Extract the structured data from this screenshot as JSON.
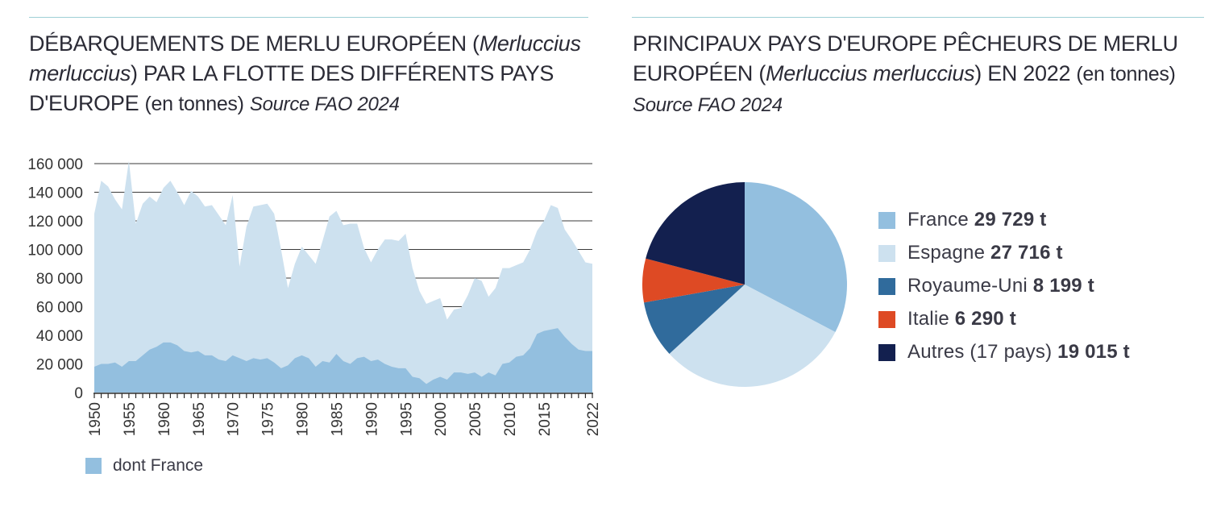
{
  "left_chart": {
    "title_main": "DÉBARQUEMENTS DE MERLU EUROPÉEN (",
    "title_species": "Merluccius merluccius",
    "title_cont": ") PAR LA FLOTTE DES DIFFÉRENTS PAYS D'EUROPE ",
    "title_unit": "(en tonnes)",
    "title_source": "Source FAO 2024",
    "legend_label": "dont France"
  },
  "right_chart": {
    "title_main": "PRINCIPAUX PAYS D'EUROPE PÊCHEURS DE MERLU EUROPÉEN (",
    "title_species": "Merluccius merluccius",
    "title_cont": ") EN 2022 ",
    "title_unit": "(en tonnes)",
    "title_source": "Source FAO 2024"
  },
  "chart_data": [
    {
      "type": "area",
      "xlabel": "",
      "ylabel": "",
      "ylim": [
        0,
        160000
      ],
      "y_ticks": [
        "0",
        "20 000",
        "40 000",
        "60 000",
        "80 000",
        "100 000",
        "120 000",
        "140 000",
        "160 000"
      ],
      "x_tick_labels": [
        "1950",
        "1955",
        "1960",
        "1965",
        "1970",
        "1975",
        "1980",
        "1985",
        "1990",
        "1995",
        "2000",
        "2005",
        "2010",
        "2015",
        "2022"
      ],
      "x": [
        1950,
        1951,
        1952,
        1953,
        1954,
        1955,
        1956,
        1957,
        1958,
        1959,
        1960,
        1961,
        1962,
        1963,
        1964,
        1965,
        1966,
        1967,
        1968,
        1969,
        1970,
        1971,
        1972,
        1973,
        1974,
        1975,
        1976,
        1977,
        1978,
        1979,
        1980,
        1981,
        1982,
        1983,
        1984,
        1985,
        1986,
        1987,
        1988,
        1989,
        1990,
        1991,
        1992,
        1993,
        1994,
        1995,
        1996,
        1997,
        1998,
        1999,
        2000,
        2001,
        2002,
        2003,
        2004,
        2005,
        2006,
        2007,
        2008,
        2009,
        2010,
        2011,
        2012,
        2013,
        2014,
        2015,
        2016,
        2017,
        2018,
        2019,
        2020,
        2021,
        2022
      ],
      "series": [
        {
          "name": "",
          "color": "#cde1ef",
          "values": [
            125000,
            148000,
            144000,
            135000,
            128000,
            162000,
            118000,
            132000,
            137000,
            133000,
            143000,
            148000,
            140000,
            131000,
            141000,
            137000,
            130000,
            131000,
            124000,
            117000,
            138000,
            88000,
            116000,
            130000,
            131000,
            132000,
            125000,
            100000,
            73000,
            90000,
            102000,
            96000,
            90000,
            106000,
            123000,
            127000,
            117000,
            118000,
            118000,
            101000,
            91000,
            100000,
            107000,
            107000,
            106000,
            111000,
            87000,
            71000,
            62000,
            64000,
            66000,
            51000,
            58000,
            59000,
            68000,
            80000,
            78000,
            67000,
            73000,
            87000,
            87000,
            89000,
            91000,
            100000,
            113000,
            120000,
            131000,
            129000,
            114000,
            107000,
            99000,
            91000,
            90000
          ]
        },
        {
          "name": "dont France",
          "color": "#93bfdf",
          "values": [
            18000,
            20000,
            20000,
            21000,
            18000,
            22000,
            22000,
            26000,
            30000,
            32000,
            35000,
            35000,
            33000,
            29000,
            28000,
            29000,
            26000,
            26000,
            23000,
            22000,
            26000,
            24000,
            22000,
            24000,
            23000,
            24000,
            21000,
            17000,
            19000,
            24000,
            26000,
            24000,
            18000,
            22000,
            21000,
            27000,
            22000,
            20000,
            24000,
            25000,
            22000,
            23000,
            20000,
            18000,
            17000,
            17000,
            11000,
            10000,
            6000,
            9000,
            11000,
            9000,
            14000,
            14000,
            13000,
            14000,
            11000,
            14000,
            12000,
            20000,
            21000,
            25000,
            26000,
            31000,
            41000,
            43000,
            44000,
            45000,
            39000,
            34000,
            30000,
            29000,
            29000
          ]
        }
      ]
    },
    {
      "type": "pie",
      "title": "",
      "labels": [
        "France",
        "Espagne",
        "Royaume-Uni",
        "Italie",
        "Autres (17 pays)"
      ],
      "values": [
        29729,
        27716,
        8199,
        6290,
        19015
      ],
      "value_labels": [
        "29 729 t",
        "27 716 t",
        "8 199 t",
        "6 290 t",
        "19 015 t"
      ],
      "colors": [
        "#93bfdf",
        "#cde1ef",
        "#306b9c",
        "#de4a24",
        "#13204f"
      ],
      "legend_position": "right"
    }
  ]
}
